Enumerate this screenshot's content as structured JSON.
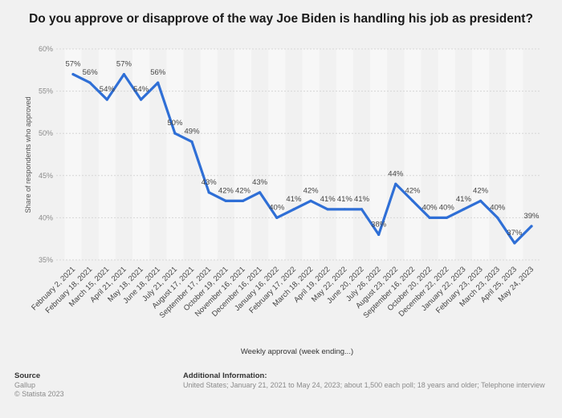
{
  "chart_data": {
    "type": "line",
    "title": "Do you approve or disapprove of the way Joe Biden is handling his job as president?",
    "xlabel": "Weekly approval (week ending...)",
    "ylabel": "Share of respondents who approved",
    "ylim": [
      35,
      60
    ],
    "yticks": [
      "35%",
      "40%",
      "45%",
      "50%",
      "55%",
      "60%"
    ],
    "ytick_values": [
      35,
      40,
      45,
      50,
      55,
      60
    ],
    "categories": [
      "February 2, 2021",
      "February 18, 2021",
      "March 15, 2021",
      "April 21, 2021",
      "May 18, 2021",
      "June 18, 2021",
      "July 21, 2021",
      "August 17, 2021",
      "September 17, 2021",
      "October 19, 2021",
      "November 16, 2021",
      "December 16, 2021",
      "January 16, 2022",
      "February 17, 2022",
      "March 18, 2022",
      "April 19, 2022",
      "May 22, 2022",
      "June 20, 2022",
      "July 26, 2022",
      "August 23, 2022",
      "September 16, 2022",
      "October 20, 2022",
      "December 22, 2022",
      "January 22, 2023",
      "February 23, 2023",
      "March 23, 2023",
      "April 25, 2023",
      "May 24, 2023"
    ],
    "x_label_groups": [
      {
        "text": "February 2, 2021",
        "from": 0,
        "to": 0
      },
      {
        "text": "February 18, 2021",
        "from": 1,
        "to": 1
      },
      {
        "text": "March 15, 2021",
        "from": 2,
        "to": 2
      },
      {
        "text": "April 21, 2021",
        "from": 3,
        "to": 3
      },
      {
        "text": "May 18, 2021",
        "from": 4,
        "to": 4
      },
      {
        "text": "June 18, 2021",
        "from": 5,
        "to": 5
      },
      {
        "text": "July 21, 2021",
        "from": 6,
        "to": 6
      },
      {
        "text": "August 17, 2021",
        "from": 7,
        "to": 7
      },
      {
        "text": "September 17, 2021",
        "from": 8,
        "to": 8
      },
      {
        "text": "October 19, 2021",
        "from": 9,
        "to": 9
      },
      {
        "text": "November 16, 2021",
        "from": 10,
        "to": 10
      },
      {
        "text": "December 16, 2021",
        "from": 11,
        "to": 11
      },
      {
        "text": "January 16, 2022",
        "from": 12,
        "to": 12
      },
      {
        "text": "February 17, 2022",
        "from": 13,
        "to": 13
      },
      {
        "text": "March 18, 2022",
        "from": 14,
        "to": 14
      },
      {
        "text": "April 19, 2022",
        "from": 15,
        "to": 15
      },
      {
        "text": "May 22, 2022",
        "from": 16,
        "to": 16
      },
      {
        "text": "June 20, 2022",
        "from": 17,
        "to": 17
      },
      {
        "text": "July 26, 2022",
        "from": 18,
        "to": 18
      },
      {
        "text": "August 23, 2022",
        "from": 19,
        "to": 19
      },
      {
        "text": "September 16, 2022",
        "from": 20,
        "to": 20
      },
      {
        "text": "October 20, 2022",
        "from": 21,
        "to": 21
      },
      {
        "text": "December 22, 2022",
        "from": 22,
        "to": 22
      },
      {
        "text": "January 22, 2023",
        "from": 23,
        "to": 23
      },
      {
        "text": "February 23, 2023",
        "from": 24,
        "to": 24
      },
      {
        "text": "March 23, 2023",
        "from": 25,
        "to": 25
      },
      {
        "text": "April 25, 2023",
        "from": 26,
        "to": 26
      },
      {
        "text": "May 24, 2023",
        "from": 27,
        "to": 27
      }
    ],
    "series": [
      {
        "name": "Share of respondents who approved",
        "values": [
          57,
          56,
          54,
          57,
          54,
          56,
          50,
          49,
          43,
          42,
          42,
          43,
          40,
          41,
          42,
          41,
          41,
          41,
          38,
          44,
          42,
          40,
          40,
          41,
          42,
          40,
          37,
          39
        ]
      }
    ],
    "data_labels": [
      "57%",
      "56%",
      "54%",
      "57%",
      "54%",
      "56%",
      "50%",
      "49%",
      "43%",
      "42%",
      "42%",
      "43%",
      "40%",
      "41%",
      "42%",
      "41%",
      "41%",
      "41%",
      "38%",
      "44%",
      "42%",
      "40%",
      "40%",
      "41%",
      "42%",
      "40%",
      "37%",
      "39%"
    ],
    "line_color": "#2f6fd6",
    "grid": true
  },
  "footer": {
    "source_heading": "Source",
    "source_lines": [
      "Gallup",
      "© Statista 2023"
    ],
    "info_heading": "Additional Information:",
    "info_text": "United States; January 21, 2021 to May 24, 2023; about 1,500 each poll; 18 years and older; Telephone interview"
  }
}
